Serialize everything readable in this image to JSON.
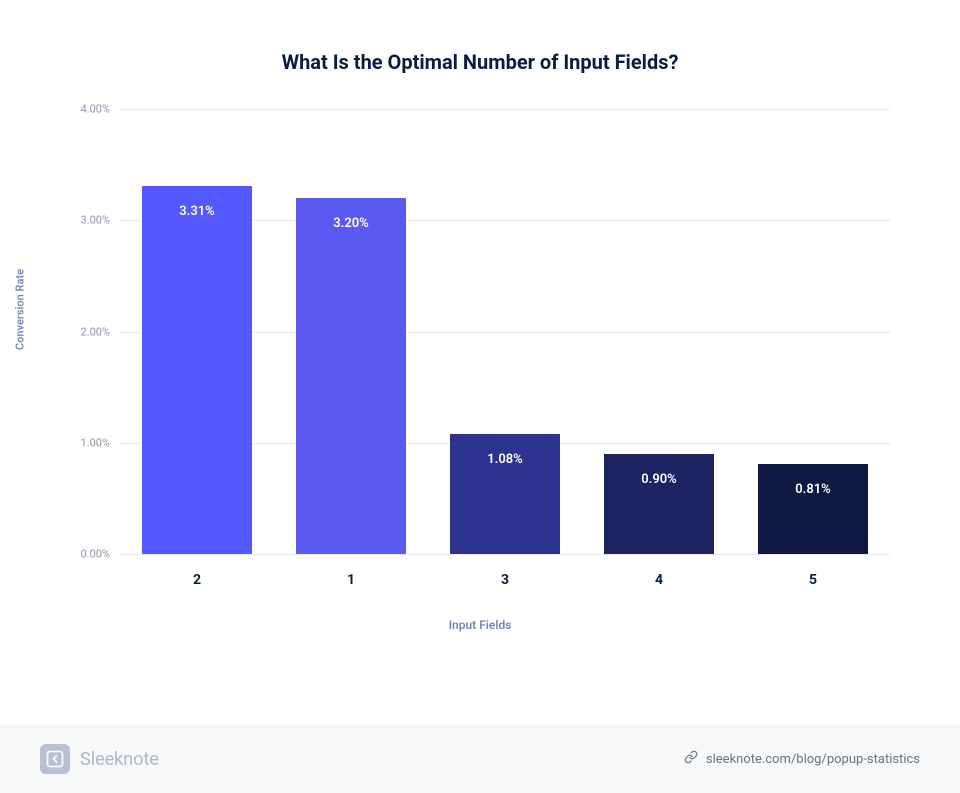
{
  "chart": {
    "type": "bar",
    "title": "What Is the Optimal Number of Input Fields?",
    "title_color": "#0a1e3f",
    "title_fontsize": 20,
    "background_color": "#ffffff",
    "grid_color": "#e8eaed",
    "y_axis": {
      "label": "Conversion Rate",
      "label_color": "#7787b5",
      "label_fontsize": 11,
      "min": 0,
      "max": 4,
      "ticks": [
        {
          "value": 0,
          "label": "0.00%"
        },
        {
          "value": 1,
          "label": "1.00%"
        },
        {
          "value": 2,
          "label": "2.00%"
        },
        {
          "value": 3,
          "label": "3.00%"
        },
        {
          "value": 4,
          "label": "4.00%"
        }
      ],
      "tick_color": "#8b95a8",
      "tick_fontsize": 11
    },
    "x_axis": {
      "label": "Input Fields",
      "label_color": "#7787b5",
      "label_fontsize": 12,
      "tick_color": "#0a1e3f",
      "tick_fontsize": 14
    },
    "bars": [
      {
        "category": "2",
        "value": 3.31,
        "label": "3.31%",
        "color": "#5557ff"
      },
      {
        "category": "1",
        "value": 3.2,
        "label": "3.20%",
        "color": "#5b5af0"
      },
      {
        "category": "3",
        "value": 1.08,
        "label": "1.08%",
        "color": "#2e338f"
      },
      {
        "category": "4",
        "value": 0.9,
        "label": "0.90%",
        "color": "#1c2463"
      },
      {
        "category": "5",
        "value": 0.81,
        "label": "0.81%",
        "color": "#0f1a44"
      }
    ],
    "bar_label_color": "#ffffff",
    "bar_label_fontsize": 13,
    "bar_width_pct": 72
  },
  "footer": {
    "background_color": "#f7f8f9",
    "brand_name": "Sleeknote",
    "brand_name_color": "#aeb7cb",
    "logo_bg": "#b7bfd3",
    "link_text": "sleeknote.com/blog/popup-statistics",
    "link_color": "#6b7280"
  }
}
